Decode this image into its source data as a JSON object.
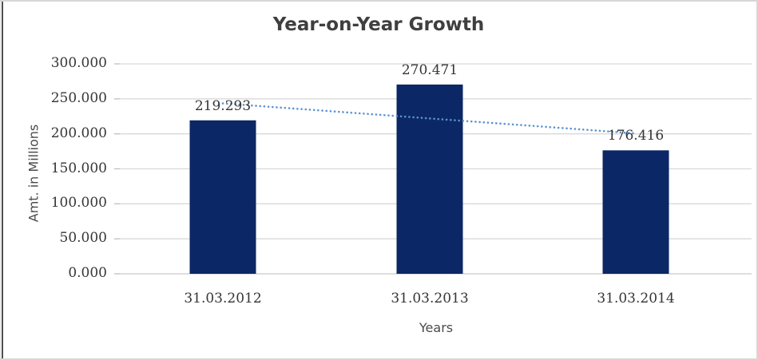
{
  "chart_data": {
    "type": "bar",
    "title": "Year-on-Year Growth",
    "xlabel": "Years",
    "ylabel": "Amt. in Millions",
    "categories": [
      "31.03.2012",
      "31.03.2013",
      "31.03.2014"
    ],
    "values": [
      219.293,
      270.471,
      176.416
    ],
    "data_labels": [
      "219.293",
      "270.471",
      "176.416"
    ],
    "ylim": [
      0,
      300
    ],
    "yticks": [
      {
        "value": 0,
        "label": "0.000"
      },
      {
        "value": 50,
        "label": "50.000"
      },
      {
        "value": 100,
        "label": "100.000"
      },
      {
        "value": 150,
        "label": "150.000"
      },
      {
        "value": 200,
        "label": "200.000"
      },
      {
        "value": 250,
        "label": "250.000"
      },
      {
        "value": 300,
        "label": "300.000"
      }
    ],
    "grid": true,
    "legend": "none",
    "trendline": {
      "style": "dotted",
      "start_value": 243.5,
      "end_value": 200.6,
      "color": "#5B93D0"
    },
    "colors": {
      "bar": "#0C2765",
      "gridline": "#D9D9D9",
      "axis_line": "#C9C9C9",
      "tick_mark": "#BFBFBF",
      "label_text": "#363636",
      "title_text": "#3F3F3F",
      "axis_title_text": "#4A4A4A"
    }
  }
}
